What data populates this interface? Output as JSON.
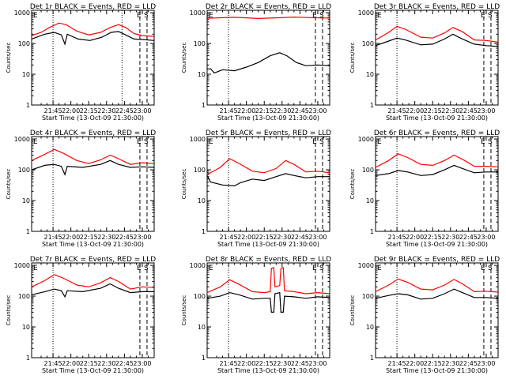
{
  "chart_data": {
    "type": "line",
    "common": {
      "ylabel": "Counts/sec",
      "xlabel": "Start Time (13-Oct-09 21:30:00)",
      "x_ticks": [
        "21:45",
        "22:00",
        "22:15",
        "22:30",
        "22:45",
        "23:00"
      ],
      "x_tick_minutes": [
        15,
        30,
        45,
        60,
        75,
        90
      ],
      "xlim_minutes": [
        -3,
        100
      ],
      "y_scale": "log",
      "ylim": [
        1,
        1200
      ],
      "y_ticks": [
        1,
        10,
        100,
        1000
      ],
      "y_tick_labels": [
        "1",
        "10",
        "100",
        "1000"
      ],
      "series_colors": {
        "events": "#000000",
        "lld": "#ff0000"
      },
      "dotted_markers_minutes": [
        15,
        73
      ],
      "dashed_markers_minutes": [
        88,
        94
      ],
      "marker_labels": [
        {
          "text": "E",
          "minute": 88
        },
        {
          "text": "S",
          "minute": 94
        }
      ],
      "left_marker_label": "E"
    },
    "panels": [
      {
        "title": "Det 1r BLACK = Events, RED = LLD",
        "dotted": [
          15,
          73
        ],
        "lld": [
          [
            -3,
            180
          ],
          [
            5,
            230
          ],
          [
            12,
            330
          ],
          [
            20,
            460
          ],
          [
            26,
            410
          ],
          [
            35,
            250
          ],
          [
            45,
            190
          ],
          [
            55,
            230
          ],
          [
            63,
            330
          ],
          [
            70,
            410
          ],
          [
            76,
            330
          ],
          [
            83,
            210
          ],
          [
            90,
            180
          ],
          [
            100,
            170
          ]
        ],
        "events": [
          [
            -3,
            140
          ],
          [
            8,
            200
          ],
          [
            16,
            230
          ],
          [
            22,
            190
          ],
          [
            25,
            95
          ],
          [
            27,
            200
          ],
          [
            36,
            140
          ],
          [
            46,
            125
          ],
          [
            56,
            160
          ],
          [
            64,
            230
          ],
          [
            70,
            245
          ],
          [
            76,
            190
          ],
          [
            83,
            140
          ],
          [
            90,
            135
          ],
          [
            100,
            125
          ]
        ]
      },
      {
        "title": "Det 2r BLACK = Events, RED = LLD",
        "dotted": [
          15
        ],
        "lld": [
          [
            -3,
            660
          ],
          [
            20,
            710
          ],
          [
            40,
            650
          ],
          [
            55,
            680
          ],
          [
            70,
            720
          ],
          [
            85,
            690
          ],
          [
            100,
            670
          ]
        ],
        "events": [
          [
            -3,
            15
          ],
          [
            0,
            15
          ],
          [
            3,
            11
          ],
          [
            10,
            14
          ],
          [
            20,
            13
          ],
          [
            30,
            17
          ],
          [
            40,
            24
          ],
          [
            50,
            40
          ],
          [
            58,
            50
          ],
          [
            64,
            40
          ],
          [
            72,
            24
          ],
          [
            80,
            19
          ],
          [
            90,
            20
          ],
          [
            100,
            19
          ]
        ]
      },
      {
        "title": "Det 3r BLACK = Events, RED = LLD",
        "dotted": [
          15
        ],
        "lld": [
          [
            -3,
            130
          ],
          [
            8,
            230
          ],
          [
            15,
            360
          ],
          [
            22,
            290
          ],
          [
            35,
            160
          ],
          [
            45,
            150
          ],
          [
            55,
            220
          ],
          [
            62,
            330
          ],
          [
            70,
            240
          ],
          [
            80,
            130
          ],
          [
            90,
            125
          ],
          [
            100,
            110
          ]
        ],
        "events": [
          [
            -3,
            85
          ],
          [
            8,
            120
          ],
          [
            15,
            150
          ],
          [
            22,
            130
          ],
          [
            35,
            90
          ],
          [
            45,
            95
          ],
          [
            55,
            140
          ],
          [
            62,
            200
          ],
          [
            70,
            140
          ],
          [
            80,
            95
          ],
          [
            90,
            85
          ],
          [
            100,
            80
          ]
        ]
      },
      {
        "title": "Det 4r BLACK = Events, RED = LLD",
        "dotted": [
          15
        ],
        "lld": [
          [
            -3,
            200
          ],
          [
            8,
            320
          ],
          [
            16,
            460
          ],
          [
            24,
            340
          ],
          [
            35,
            200
          ],
          [
            45,
            160
          ],
          [
            55,
            210
          ],
          [
            63,
            300
          ],
          [
            70,
            230
          ],
          [
            80,
            150
          ],
          [
            90,
            170
          ],
          [
            100,
            160
          ]
        ],
        "events": [
          [
            -3,
            100
          ],
          [
            8,
            140
          ],
          [
            16,
            150
          ],
          [
            22,
            130
          ],
          [
            25,
            70
          ],
          [
            27,
            130
          ],
          [
            40,
            120
          ],
          [
            55,
            150
          ],
          [
            63,
            200
          ],
          [
            70,
            150
          ],
          [
            80,
            120
          ],
          [
            90,
            125
          ],
          [
            100,
            120
          ]
        ]
      },
      {
        "title": "Det 5r BLACK = Events, RED = LLD",
        "dotted": [
          15
        ],
        "lld": [
          [
            -3,
            70
          ],
          [
            8,
            120
          ],
          [
            16,
            230
          ],
          [
            24,
            160
          ],
          [
            35,
            90
          ],
          [
            45,
            80
          ],
          [
            55,
            110
          ],
          [
            63,
            200
          ],
          [
            70,
            150
          ],
          [
            80,
            85
          ],
          [
            90,
            90
          ],
          [
            100,
            80
          ]
        ],
        "events": [
          [
            -3,
            65
          ],
          [
            0,
            40
          ],
          [
            10,
            32
          ],
          [
            20,
            30
          ],
          [
            25,
            38
          ],
          [
            35,
            50
          ],
          [
            45,
            45
          ],
          [
            55,
            60
          ],
          [
            63,
            75
          ],
          [
            70,
            65
          ],
          [
            80,
            55
          ],
          [
            90,
            60
          ],
          [
            100,
            60
          ]
        ]
      },
      {
        "title": "Det 6r BLACK = Events, RED = LLD",
        "dotted": [
          15
        ],
        "lld": [
          [
            -3,
            120
          ],
          [
            8,
            200
          ],
          [
            16,
            330
          ],
          [
            24,
            250
          ],
          [
            35,
            150
          ],
          [
            45,
            140
          ],
          [
            55,
            200
          ],
          [
            63,
            300
          ],
          [
            70,
            220
          ],
          [
            80,
            130
          ],
          [
            90,
            130
          ],
          [
            100,
            125
          ]
        ],
        "events": [
          [
            -3,
            65
          ],
          [
            8,
            75
          ],
          [
            16,
            95
          ],
          [
            24,
            85
          ],
          [
            35,
            65
          ],
          [
            45,
            70
          ],
          [
            55,
            100
          ],
          [
            63,
            140
          ],
          [
            70,
            110
          ],
          [
            80,
            80
          ],
          [
            90,
            85
          ],
          [
            100,
            85
          ]
        ]
      },
      {
        "title": "Det 7r BLACK = Events, RED = LLD",
        "dotted": [
          15
        ],
        "lld": [
          [
            -3,
            200
          ],
          [
            8,
            320
          ],
          [
            16,
            500
          ],
          [
            24,
            380
          ],
          [
            35,
            230
          ],
          [
            45,
            200
          ],
          [
            55,
            270
          ],
          [
            63,
            400
          ],
          [
            70,
            300
          ],
          [
            80,
            170
          ],
          [
            90,
            200
          ],
          [
            100,
            190
          ]
        ],
        "events": [
          [
            -3,
            110
          ],
          [
            8,
            140
          ],
          [
            16,
            170
          ],
          [
            22,
            150
          ],
          [
            25,
            95
          ],
          [
            27,
            150
          ],
          [
            40,
            140
          ],
          [
            55,
            180
          ],
          [
            63,
            250
          ],
          [
            70,
            180
          ],
          [
            80,
            130
          ],
          [
            90,
            140
          ],
          [
            100,
            140
          ]
        ]
      },
      {
        "title": "Det 8r BLACK = Events, RED = LLD",
        "dotted": [
          15
        ],
        "lld": [
          [
            -3,
            130
          ],
          [
            8,
            200
          ],
          [
            16,
            340
          ],
          [
            24,
            240
          ],
          [
            35,
            140
          ],
          [
            45,
            130
          ],
          [
            50,
            140
          ],
          [
            51,
            800
          ],
          [
            53,
            850
          ],
          [
            54,
            200
          ],
          [
            58,
            220
          ],
          [
            59,
            800
          ],
          [
            61,
            850
          ],
          [
            62,
            150
          ],
          [
            70,
            140
          ],
          [
            80,
            120
          ],
          [
            90,
            130
          ],
          [
            100,
            120
          ]
        ],
        "events": [
          [
            -3,
            85
          ],
          [
            8,
            100
          ],
          [
            16,
            130
          ],
          [
            24,
            110
          ],
          [
            35,
            80
          ],
          [
            45,
            85
          ],
          [
            50,
            85
          ],
          [
            51,
            30
          ],
          [
            53,
            30
          ],
          [
            54,
            120
          ],
          [
            58,
            130
          ],
          [
            59,
            30
          ],
          [
            61,
            30
          ],
          [
            62,
            100
          ],
          [
            70,
            95
          ],
          [
            80,
            85
          ],
          [
            90,
            95
          ],
          [
            100,
            90
          ]
        ]
      },
      {
        "title": "Det 9r BLACK = Events, RED = LLD",
        "dotted": [
          15
        ],
        "lld": [
          [
            -3,
            140
          ],
          [
            8,
            230
          ],
          [
            16,
            360
          ],
          [
            24,
            280
          ],
          [
            35,
            170
          ],
          [
            45,
            160
          ],
          [
            55,
            230
          ],
          [
            63,
            350
          ],
          [
            70,
            250
          ],
          [
            80,
            140
          ],
          [
            90,
            145
          ],
          [
            100,
            135
          ]
        ],
        "events": [
          [
            -3,
            85
          ],
          [
            8,
            105
          ],
          [
            16,
            120
          ],
          [
            24,
            110
          ],
          [
            35,
            80
          ],
          [
            45,
            85
          ],
          [
            55,
            120
          ],
          [
            63,
            170
          ],
          [
            70,
            130
          ],
          [
            80,
            90
          ],
          [
            90,
            90
          ],
          [
            100,
            85
          ]
        ]
      }
    ]
  }
}
